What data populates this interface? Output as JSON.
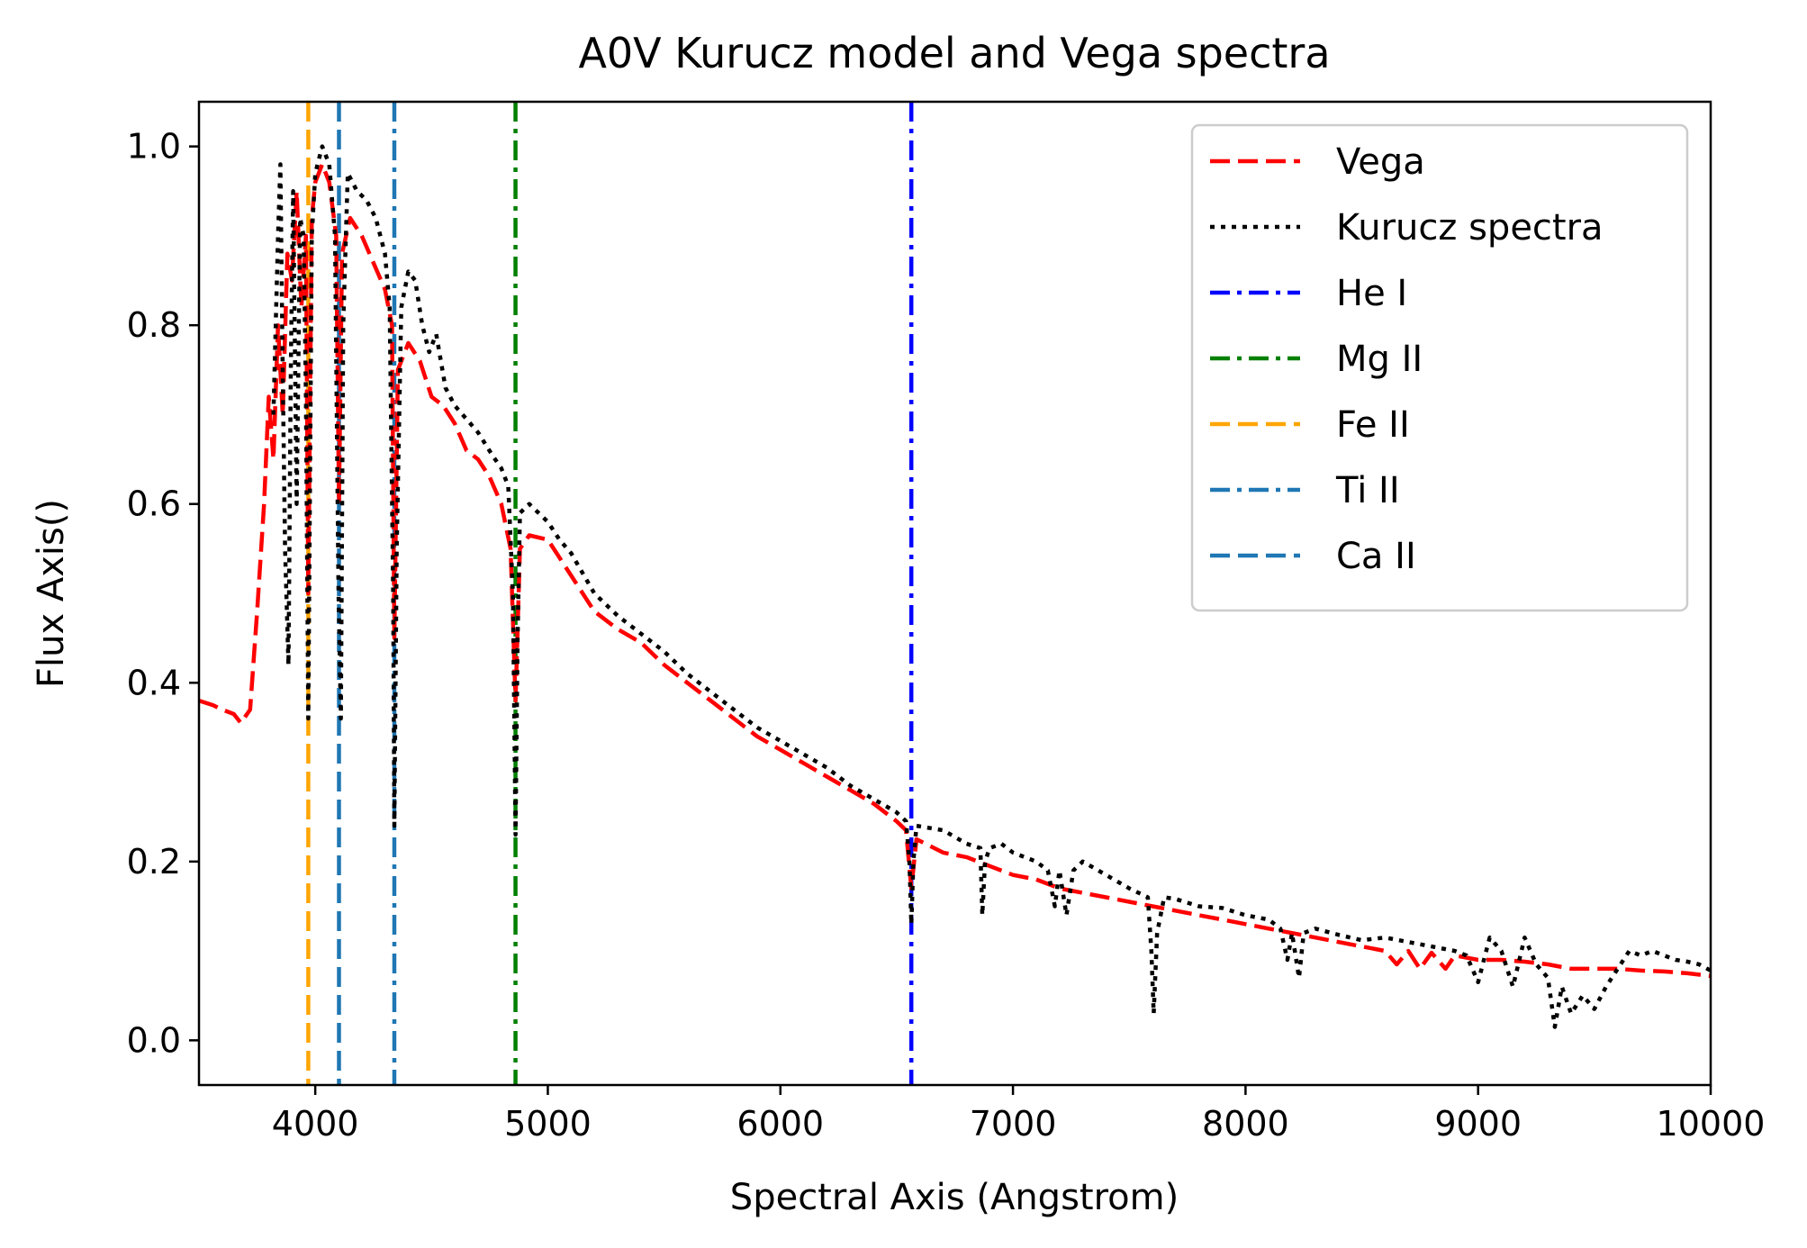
{
  "chart_data": {
    "type": "line",
    "title": "A0V Kurucz model and Vega spectra",
    "xlabel": "Spectral Axis (Angstrom)",
    "ylabel": "Flux Axis()",
    "xlim": [
      3500,
      10000
    ],
    "ylim": [
      -0.05,
      1.05
    ],
    "xticks": [
      4000,
      5000,
      6000,
      7000,
      8000,
      9000,
      10000
    ],
    "yticks": [
      0.0,
      0.2,
      0.4,
      0.6,
      0.8,
      1.0
    ],
    "grid": false,
    "legend_position": "top-right",
    "series": [
      {
        "name": "Vega",
        "color": "#ff0000",
        "style": "dashed",
        "points": [
          [
            3500,
            0.38
          ],
          [
            3560,
            0.375
          ],
          [
            3600,
            0.37
          ],
          [
            3650,
            0.365
          ],
          [
            3680,
            0.355
          ],
          [
            3720,
            0.37
          ],
          [
            3750,
            0.48
          ],
          [
            3780,
            0.6
          ],
          [
            3800,
            0.72
          ],
          [
            3820,
            0.65
          ],
          [
            3840,
            0.8
          ],
          [
            3860,
            0.7
          ],
          [
            3880,
            0.88
          ],
          [
            3900,
            0.85
          ],
          [
            3920,
            0.95
          ],
          [
            3940,
            0.82
          ],
          [
            3960,
            0.9
          ],
          [
            3970,
            0.5
          ],
          [
            3985,
            0.92
          ],
          [
            4000,
            0.96
          ],
          [
            4030,
            0.98
          ],
          [
            4060,
            0.96
          ],
          [
            4090,
            0.9
          ],
          [
            4102,
            0.6
          ],
          [
            4115,
            0.88
          ],
          [
            4150,
            0.92
          ],
          [
            4200,
            0.9
          ],
          [
            4250,
            0.87
          ],
          [
            4300,
            0.84
          ],
          [
            4330,
            0.8
          ],
          [
            4340,
            0.45
          ],
          [
            4355,
            0.75
          ],
          [
            4400,
            0.78
          ],
          [
            4450,
            0.76
          ],
          [
            4500,
            0.72
          ],
          [
            4550,
            0.71
          ],
          [
            4600,
            0.69
          ],
          [
            4650,
            0.66
          ],
          [
            4700,
            0.65
          ],
          [
            4750,
            0.63
          ],
          [
            4800,
            0.6
          ],
          [
            4840,
            0.55
          ],
          [
            4861,
            0.38
          ],
          [
            4880,
            0.55
          ],
          [
            4920,
            0.565
          ],
          [
            5000,
            0.56
          ],
          [
            5100,
            0.52
          ],
          [
            5200,
            0.48
          ],
          [
            5300,
            0.46
          ],
          [
            5400,
            0.445
          ],
          [
            5500,
            0.42
          ],
          [
            5600,
            0.4
          ],
          [
            5700,
            0.38
          ],
          [
            5800,
            0.36
          ],
          [
            5900,
            0.34
          ],
          [
            6000,
            0.325
          ],
          [
            6100,
            0.31
          ],
          [
            6200,
            0.295
          ],
          [
            6300,
            0.28
          ],
          [
            6400,
            0.265
          ],
          [
            6500,
            0.245
          ],
          [
            6540,
            0.235
          ],
          [
            6563,
            0.17
          ],
          [
            6585,
            0.225
          ],
          [
            6700,
            0.21
          ],
          [
            6800,
            0.205
          ],
          [
            6900,
            0.195
          ],
          [
            7000,
            0.185
          ],
          [
            7100,
            0.18
          ],
          [
            7200,
            0.17
          ],
          [
            7300,
            0.165
          ],
          [
            7400,
            0.16
          ],
          [
            7500,
            0.155
          ],
          [
            7600,
            0.15
          ],
          [
            7700,
            0.145
          ],
          [
            7800,
            0.14
          ],
          [
            7900,
            0.135
          ],
          [
            8000,
            0.13
          ],
          [
            8100,
            0.125
          ],
          [
            8200,
            0.12
          ],
          [
            8300,
            0.115
          ],
          [
            8400,
            0.11
          ],
          [
            8500,
            0.105
          ],
          [
            8600,
            0.1
          ],
          [
            8650,
            0.085
          ],
          [
            8700,
            0.1
          ],
          [
            8750,
            0.08
          ],
          [
            8800,
            0.098
          ],
          [
            8860,
            0.08
          ],
          [
            8900,
            0.095
          ],
          [
            9000,
            0.09
          ],
          [
            9100,
            0.09
          ],
          [
            9200,
            0.088
          ],
          [
            9300,
            0.085
          ],
          [
            9400,
            0.08
          ],
          [
            9500,
            0.08
          ],
          [
            9600,
            0.08
          ],
          [
            9700,
            0.078
          ],
          [
            9800,
            0.077
          ],
          [
            9900,
            0.075
          ],
          [
            10000,
            0.072
          ]
        ]
      },
      {
        "name": "Kurucz spectra",
        "color": "#000000",
        "style": "dotted",
        "points": [
          [
            3820,
            0.7
          ],
          [
            3840,
            0.9
          ],
          [
            3850,
            0.98
          ],
          [
            3860,
            0.75
          ],
          [
            3870,
            0.55
          ],
          [
            3885,
            0.42
          ],
          [
            3895,
            0.75
          ],
          [
            3905,
            0.95
          ],
          [
            3920,
            0.6
          ],
          [
            3935,
            0.92
          ],
          [
            3950,
            0.9
          ],
          [
            3960,
            0.72
          ],
          [
            3970,
            0.36
          ],
          [
            3985,
            0.9
          ],
          [
            4000,
            0.97
          ],
          [
            4030,
            1.0
          ],
          [
            4060,
            0.98
          ],
          [
            4085,
            0.9
          ],
          [
            4100,
            0.5
          ],
          [
            4110,
            0.36
          ],
          [
            4120,
            0.8
          ],
          [
            4140,
            0.97
          ],
          [
            4180,
            0.95
          ],
          [
            4220,
            0.94
          ],
          [
            4260,
            0.92
          ],
          [
            4300,
            0.88
          ],
          [
            4320,
            0.82
          ],
          [
            4335,
            0.5
          ],
          [
            4340,
            0.24
          ],
          [
            4350,
            0.55
          ],
          [
            4370,
            0.82
          ],
          [
            4400,
            0.86
          ],
          [
            4430,
            0.85
          ],
          [
            4460,
            0.8
          ],
          [
            4490,
            0.77
          ],
          [
            4520,
            0.79
          ],
          [
            4560,
            0.73
          ],
          [
            4600,
            0.71
          ],
          [
            4650,
            0.695
          ],
          [
            4700,
            0.68
          ],
          [
            4760,
            0.655
          ],
          [
            4800,
            0.64
          ],
          [
            4830,
            0.62
          ],
          [
            4850,
            0.5
          ],
          [
            4861,
            0.23
          ],
          [
            4870,
            0.45
          ],
          [
            4880,
            0.59
          ],
          [
            4920,
            0.6
          ],
          [
            5000,
            0.58
          ],
          [
            5050,
            0.56
          ],
          [
            5100,
            0.545
          ],
          [
            5200,
            0.5
          ],
          [
            5300,
            0.475
          ],
          [
            5400,
            0.455
          ],
          [
            5500,
            0.435
          ],
          [
            5600,
            0.41
          ],
          [
            5700,
            0.39
          ],
          [
            5800,
            0.37
          ],
          [
            5900,
            0.35
          ],
          [
            6000,
            0.335
          ],
          [
            6100,
            0.32
          ],
          [
            6200,
            0.305
          ],
          [
            6300,
            0.285
          ],
          [
            6400,
            0.27
          ],
          [
            6500,
            0.255
          ],
          [
            6540,
            0.245
          ],
          [
            6555,
            0.2
          ],
          [
            6563,
            0.13
          ],
          [
            6572,
            0.2
          ],
          [
            6585,
            0.24
          ],
          [
            6700,
            0.235
          ],
          [
            6800,
            0.22
          ],
          [
            6860,
            0.215
          ],
          [
            6868,
            0.14
          ],
          [
            6880,
            0.2
          ],
          [
            6900,
            0.215
          ],
          [
            6950,
            0.22
          ],
          [
            7000,
            0.21
          ],
          [
            7100,
            0.2
          ],
          [
            7150,
            0.19
          ],
          [
            7180,
            0.15
          ],
          [
            7200,
            0.19
          ],
          [
            7230,
            0.14
          ],
          [
            7260,
            0.19
          ],
          [
            7300,
            0.2
          ],
          [
            7400,
            0.185
          ],
          [
            7500,
            0.17
          ],
          [
            7580,
            0.16
          ],
          [
            7595,
            0.1
          ],
          [
            7605,
            0.03
          ],
          [
            7620,
            0.12
          ],
          [
            7650,
            0.16
          ],
          [
            7700,
            0.158
          ],
          [
            7800,
            0.15
          ],
          [
            7900,
            0.148
          ],
          [
            8000,
            0.14
          ],
          [
            8100,
            0.135
          ],
          [
            8150,
            0.125
          ],
          [
            8180,
            0.09
          ],
          [
            8200,
            0.12
          ],
          [
            8230,
            0.07
          ],
          [
            8250,
            0.12
          ],
          [
            8300,
            0.125
          ],
          [
            8400,
            0.118
          ],
          [
            8500,
            0.112
          ],
          [
            8600,
            0.115
          ],
          [
            8700,
            0.11
          ],
          [
            8800,
            0.105
          ],
          [
            8900,
            0.1
          ],
          [
            8950,
            0.095
          ],
          [
            9000,
            0.065
          ],
          [
            9050,
            0.115
          ],
          [
            9100,
            0.1
          ],
          [
            9150,
            0.06
          ],
          [
            9200,
            0.115
          ],
          [
            9250,
            0.085
          ],
          [
            9300,
            0.07
          ],
          [
            9330,
            0.015
          ],
          [
            9360,
            0.06
          ],
          [
            9400,
            0.03
          ],
          [
            9450,
            0.05
          ],
          [
            9500,
            0.035
          ],
          [
            9550,
            0.06
          ],
          [
            9600,
            0.08
          ],
          [
            9650,
            0.1
          ],
          [
            9700,
            0.095
          ],
          [
            9750,
            0.1
          ],
          [
            9800,
            0.095
          ],
          [
            9850,
            0.09
          ],
          [
            9900,
            0.088
          ],
          [
            9950,
            0.085
          ],
          [
            10000,
            0.078
          ]
        ]
      }
    ],
    "vlines": [
      {
        "name": "He I",
        "x": 6563,
        "color": "#0000ff",
        "style": "dashdot"
      },
      {
        "name": "Mg II",
        "x": 4861,
        "color": "#008000",
        "style": "dashdot"
      },
      {
        "name": "Fe II",
        "x": 3970,
        "color": "#ffa500",
        "style": "dashed"
      },
      {
        "name": "Ti II",
        "x": 4340,
        "color": "#1f77b4",
        "style": "dashdot"
      },
      {
        "name": "Ca II",
        "x": 4102,
        "color": "#1f77b4",
        "style": "dashed"
      }
    ],
    "legend": [
      "Vega",
      "Kurucz spectra",
      "He I",
      "Mg II",
      "Fe II",
      "Ti II",
      "Ca II"
    ]
  }
}
